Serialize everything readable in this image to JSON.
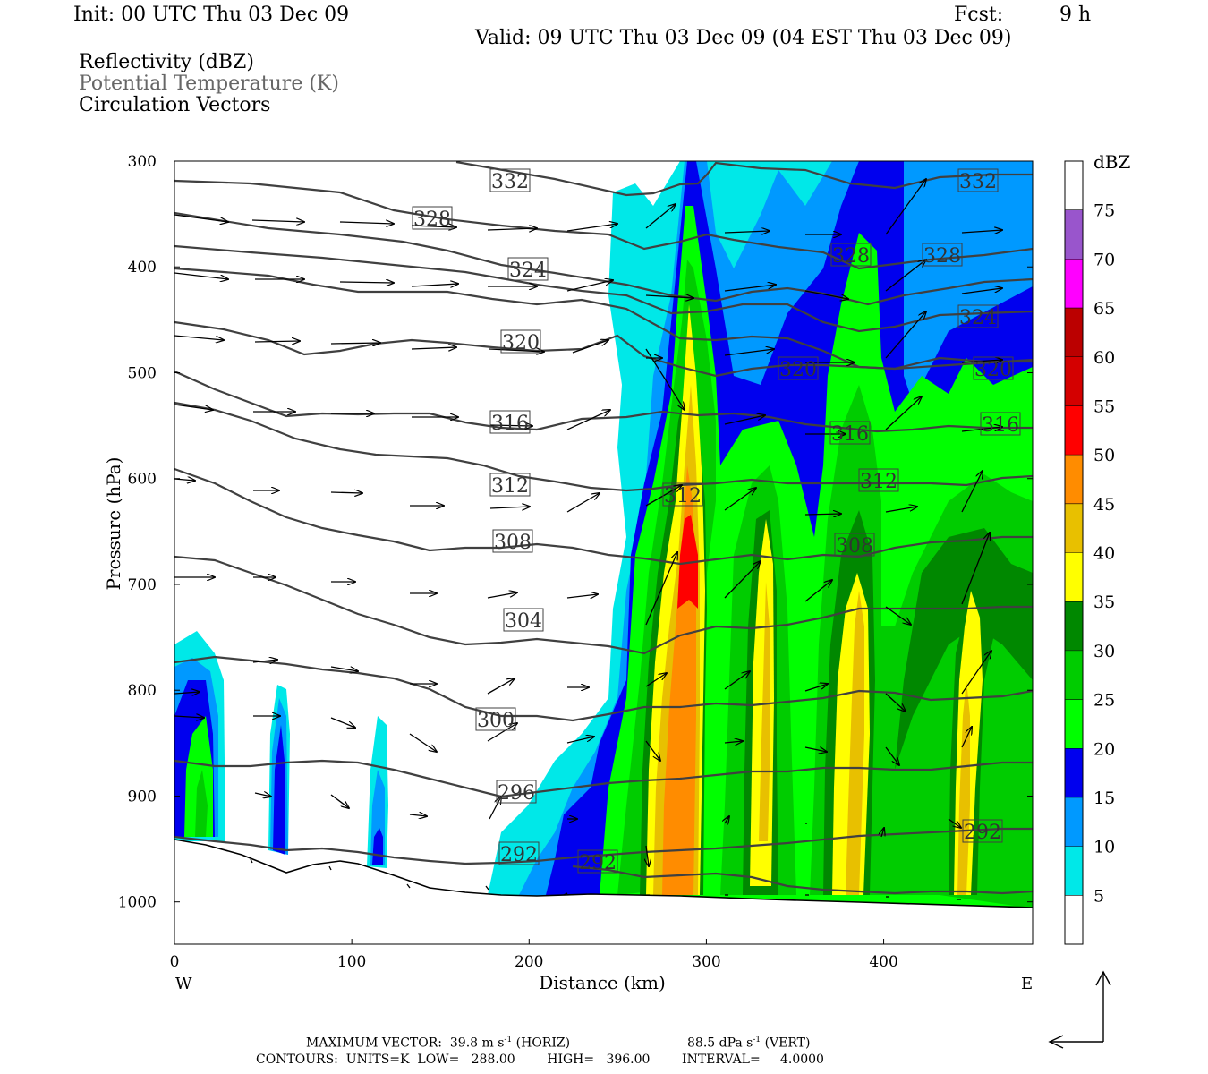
{
  "header": {
    "init": "Init: 00 UTC Thu 03 Dec 09",
    "fcst_label": "Fcst:",
    "fcst_value": "9 h",
    "valid": "Valid: 09 UTC Thu 03 Dec 09 (04 EST Thu 03 Dec 09)"
  },
  "fields": {
    "reflectivity": "Reflectivity (dBZ)",
    "theta": "Potential Temperature (K)",
    "vectors": "Circulation Vectors"
  },
  "footer": {
    "max_vector": "MAXIMUM VECTOR:  39.8 m s",
    "horiz_sup": "-1",
    "horiz": " (HORIZ)",
    "vert_val": "88.5 dPa s",
    "vert_sup": "-1",
    "vert": " (VERT)",
    "contours": "CONTOURS:  UNITS=K  LOW=   288.00        HIGH=   396.00        INTERVAL=     4.0000"
  },
  "chart_data": {
    "type": "heatmap",
    "xlabel": "Distance (km)",
    "ylabel": "Pressure (hPa)",
    "xlim": [
      0,
      484
    ],
    "ylim": [
      1040,
      300
    ],
    "x_ticks": [
      0,
      100,
      200,
      300,
      400
    ],
    "y_ticks": [
      300,
      400,
      500,
      600,
      700,
      800,
      900,
      1000
    ],
    "x_end_labels": {
      "left": "W",
      "right": "E"
    },
    "colorbar": {
      "title": "dBZ",
      "levels": [
        5,
        10,
        15,
        20,
        25,
        30,
        35,
        40,
        45,
        50,
        55,
        60,
        65,
        70,
        75
      ],
      "colors": [
        "#ffffff",
        "#00e8e8",
        "#0099ff",
        "#0000ee",
        "#00ff00",
        "#00cc00",
        "#008800",
        "#ffff00",
        "#e8c000",
        "#ff8c00",
        "#ff0000",
        "#d40000",
        "#bb0000",
        "#ff00ff",
        "#9955cc",
        "#ffffff"
      ]
    },
    "reflectivity_cells": [
      {
        "x": 8,
        "p_top": 750,
        "p_bottom": 940,
        "max_dbz": 20
      },
      {
        "x": 60,
        "p_top": 790,
        "p_bottom": 950,
        "max_dbz": 15
      },
      {
        "x": 118,
        "p_top": 820,
        "p_bottom": 965,
        "max_dbz": 15
      },
      {
        "x": 290,
        "p_top": 300,
        "p_bottom": 995,
        "max_dbz": 50
      },
      {
        "x": 333,
        "p_top": 580,
        "p_bottom": 995,
        "max_dbz": 40
      },
      {
        "x": 382,
        "p_top": 640,
        "p_bottom": 995,
        "max_dbz": 40
      },
      {
        "x": 445,
        "p_top": 660,
        "p_bottom": 995,
        "max_dbz": 40
      }
    ],
    "theta_contours": {
      "units": "K",
      "low": 288,
      "high": 396,
      "interval": 4,
      "labels": [
        "332",
        "328",
        "324",
        "320",
        "316",
        "312",
        "308",
        "304",
        "300",
        "296",
        "292",
        "328",
        "328",
        "324",
        "320",
        "320",
        "316",
        "316",
        "312",
        "308",
        "312",
        "292",
        "292",
        "332"
      ]
    },
    "max_vector": {
      "horiz": 39.8,
      "horiz_units": "m s-1",
      "vert": 88.5,
      "vert_units": "dPa s-1"
    }
  }
}
